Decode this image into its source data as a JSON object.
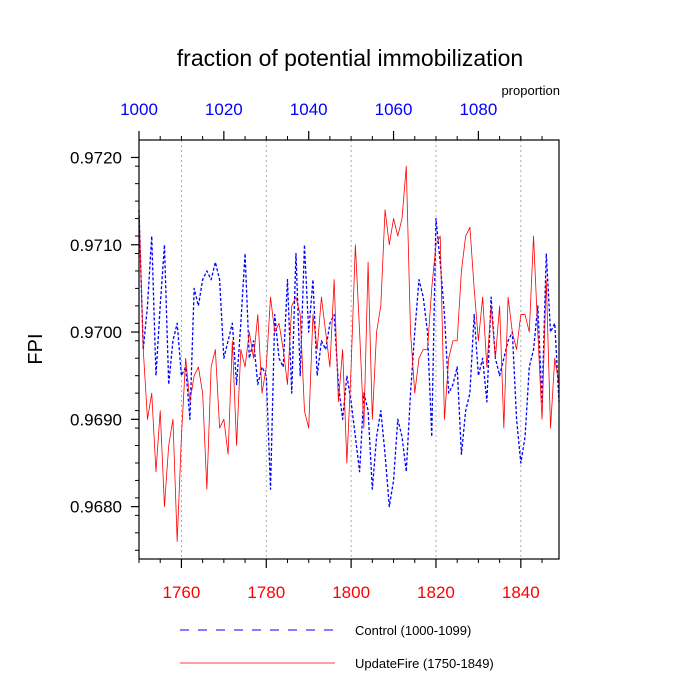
{
  "chart_data": {
    "type": "line",
    "title": "fraction of potential immobilization",
    "ylabel": "FPI",
    "top_axis_unit": "proportion",
    "ylim": [
      0.9674,
      0.9722
    ],
    "yticks": [
      0.968,
      0.969,
      0.97,
      0.971,
      0.972
    ],
    "ytick_labels": [
      "0.9680",
      "0.9690",
      "0.9700",
      "0.9710",
      "0.9720"
    ],
    "bottom_axis": {
      "range": [
        1750,
        1849
      ],
      "ticks": [
        1760,
        1780,
        1800,
        1820,
        1840
      ],
      "tick_labels": [
        "1760",
        "1780",
        "1800",
        "1820",
        "1840"
      ],
      "color": "#ff0000"
    },
    "top_axis": {
      "range": [
        1000,
        1099
      ],
      "ticks": [
        1000,
        1020,
        1040,
        1060,
        1080
      ],
      "tick_labels": [
        "1000",
        "1020",
        "1040",
        "1060",
        "1080"
      ],
      "color": "#0000ff"
    },
    "vertical_grid": "dotted at bottom-axis major ticks",
    "legend_placement": "bottom",
    "series": [
      {
        "name": "Control (1000-1099)",
        "color": "#0000ff",
        "dash": "dashed",
        "axis": "top",
        "x_start": 1000,
        "values": [
          0.9714,
          0.9698,
          0.9703,
          0.9711,
          0.9695,
          0.9703,
          0.971,
          0.9694,
          0.9699,
          0.9701,
          0.9695,
          0.9696,
          0.969,
          0.9705,
          0.9703,
          0.9706,
          0.9707,
          0.9706,
          0.9708,
          0.9706,
          0.9697,
          0.9699,
          0.9701,
          0.9694,
          0.9701,
          0.9709,
          0.9697,
          0.9699,
          0.9694,
          0.9696,
          0.9695,
          0.9682,
          0.9702,
          0.9697,
          0.9696,
          0.9706,
          0.9693,
          0.9709,
          0.9695,
          0.971,
          0.97,
          0.9706,
          0.9695,
          0.9699,
          0.9698,
          0.9701,
          0.9702,
          0.9694,
          0.969,
          0.9695,
          0.9692,
          0.9688,
          0.9684,
          0.9693,
          0.9691,
          0.9682,
          0.9688,
          0.9691,
          0.9686,
          0.968,
          0.9683,
          0.969,
          0.9688,
          0.9684,
          0.9693,
          0.97,
          0.9706,
          0.9704,
          0.97,
          0.9688,
          0.9713,
          0.9708,
          0.9702,
          0.9693,
          0.9694,
          0.9696,
          0.9686,
          0.9691,
          0.9693,
          0.9702,
          0.9695,
          0.9697,
          0.9692,
          0.9704,
          0.9697,
          0.9695,
          0.9697,
          0.9699,
          0.97,
          0.969,
          0.9685,
          0.9688,
          0.9696,
          0.9698,
          0.9703,
          0.9692,
          0.9709,
          0.97,
          0.9701,
          0.9692
        ]
      },
      {
        "name": "UpdateFire (1750-1849)",
        "color": "#ff0000",
        "dash": "solid",
        "axis": "bottom",
        "x_start": 1750,
        "values": [
          0.9714,
          0.9698,
          0.969,
          0.9693,
          0.9684,
          0.9691,
          0.968,
          0.9687,
          0.969,
          0.9676,
          0.9688,
          0.9697,
          0.9692,
          0.9695,
          0.9696,
          0.9693,
          0.9682,
          0.9696,
          0.9698,
          0.9689,
          0.969,
          0.9686,
          0.9699,
          0.9687,
          0.9698,
          0.9696,
          0.97,
          0.9697,
          0.9702,
          0.9693,
          0.9696,
          0.9704,
          0.97,
          0.9701,
          0.9698,
          0.9694,
          0.9703,
          0.9704,
          0.9702,
          0.9691,
          0.9689,
          0.9702,
          0.9698,
          0.9704,
          0.97,
          0.9696,
          0.9706,
          0.9692,
          0.9698,
          0.9685,
          0.9696,
          0.971,
          0.97,
          0.9689,
          0.9708,
          0.969,
          0.97,
          0.9703,
          0.9714,
          0.971,
          0.9713,
          0.9711,
          0.9713,
          0.9719,
          0.97,
          0.9693,
          0.9697,
          0.9698,
          0.9698,
          0.9705,
          0.971,
          0.9711,
          0.969,
          0.9697,
          0.9699,
          0.9699,
          0.9707,
          0.9711,
          0.9712,
          0.9705,
          0.9699,
          0.9704,
          0.9696,
          0.9703,
          0.9697,
          0.9703,
          0.9689,
          0.9704,
          0.97,
          0.9698,
          0.9702,
          0.9702,
          0.97,
          0.9711,
          0.97,
          0.969,
          0.9706,
          0.9689,
          0.9697,
          0.9694
        ]
      }
    ]
  }
}
